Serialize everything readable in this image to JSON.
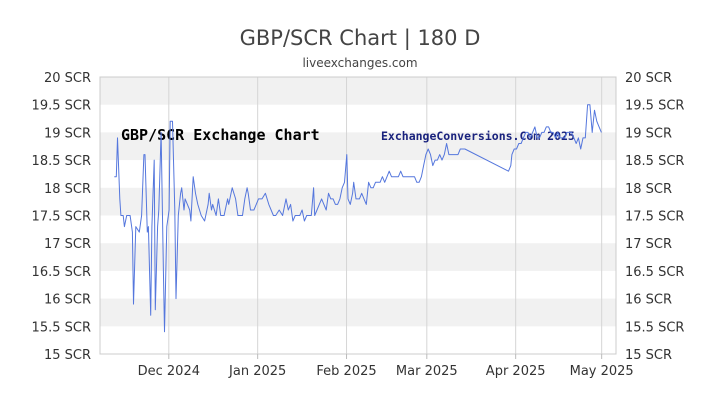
{
  "chart_data": {
    "type": "line",
    "title": "GBP/SCR Chart | 180 D",
    "subtitle": "liveexchanges.com",
    "watermark_left": "GBP/SCR Exchange Chart",
    "watermark_right": "ExchangeConversions.Com 2025",
    "ylim": [
      15,
      20
    ],
    "y_ticks": [
      {
        "value": 20,
        "label": "20 SCR"
      },
      {
        "value": 19.5,
        "label": "19.5 SCR"
      },
      {
        "value": 19,
        "label": "19 SCR"
      },
      {
        "value": 18.5,
        "label": "18.5 SCR"
      },
      {
        "value": 18,
        "label": "18 SCR"
      },
      {
        "value": 17.5,
        "label": "17.5 SCR"
      },
      {
        "value": 17,
        "label": "17 SCR"
      },
      {
        "value": 16.5,
        "label": "16.5 SCR"
      },
      {
        "value": 16,
        "label": "16 SCR"
      },
      {
        "value": 15.5,
        "label": "15.5 SCR"
      },
      {
        "value": 15,
        "label": "15 SCR"
      }
    ],
    "x_domain": [
      0,
      180
    ],
    "x_ticks": [
      {
        "value": 24,
        "label": "Dec 2024"
      },
      {
        "value": 55,
        "label": "Jan 2025"
      },
      {
        "value": 86,
        "label": "Feb 2025"
      },
      {
        "value": 114,
        "label": "Mar 2025"
      },
      {
        "value": 145,
        "label": "Apr 2025"
      },
      {
        "value": 175,
        "label": "May 2025"
      }
    ],
    "grid": true,
    "line_color": "#5577dd",
    "series": [
      {
        "values": [
          [
            5,
            18.2
          ],
          [
            5.7,
            18.2
          ],
          [
            6.1,
            18.9
          ],
          [
            6.9,
            17.8
          ],
          [
            7.3,
            17.5
          ],
          [
            8.1,
            17.5
          ],
          [
            8.5,
            17.3
          ],
          [
            9.3,
            17.5
          ],
          [
            10.5,
            17.5
          ],
          [
            11.3,
            17.2
          ],
          [
            11.7,
            15.9
          ],
          [
            12.5,
            17.3
          ],
          [
            13.7,
            17.2
          ],
          [
            14.5,
            17.5
          ],
          [
            15.3,
            18.6
          ],
          [
            15.7,
            18.6
          ],
          [
            16.5,
            17.2
          ],
          [
            16.9,
            17.3
          ],
          [
            17.7,
            15.7
          ],
          [
            18.1,
            17.3
          ],
          [
            18.9,
            18.5
          ],
          [
            19.3,
            15.8
          ],
          [
            20.1,
            17.3
          ],
          [
            20.5,
            17.6
          ],
          [
            21.3,
            19.0
          ],
          [
            22.1,
            16.5
          ],
          [
            22.5,
            15.4
          ],
          [
            23.3,
            17.3
          ],
          [
            24.1,
            17.6
          ],
          [
            24.5,
            19.2
          ],
          [
            25.3,
            19.2
          ],
          [
            26.1,
            17.6
          ],
          [
            26.5,
            16.0
          ],
          [
            27.3,
            17.5
          ],
          [
            28.1,
            17.9
          ],
          [
            28.5,
            18.0
          ],
          [
            29.3,
            17.6
          ],
          [
            29.7,
            17.8
          ],
          [
            30.5,
            17.7
          ],
          [
            31.3,
            17.6
          ],
          [
            31.7,
            17.4
          ],
          [
            32.5,
            18.2
          ],
          [
            33.3,
            17.9
          ],
          [
            34.1,
            17.7
          ],
          [
            35.3,
            17.5
          ],
          [
            36.5,
            17.4
          ],
          [
            37.7,
            17.7
          ],
          [
            38.1,
            17.9
          ],
          [
            38.9,
            17.6
          ],
          [
            39.3,
            17.7
          ],
          [
            40.5,
            17.5
          ],
          [
            41.3,
            17.8
          ],
          [
            42.1,
            17.5
          ],
          [
            43.3,
            17.5
          ],
          [
            44.5,
            17.8
          ],
          [
            44.9,
            17.7
          ],
          [
            46.1,
            18.0
          ],
          [
            47.3,
            17.8
          ],
          [
            48.1,
            17.5
          ],
          [
            48.9,
            17.5
          ],
          [
            49.7,
            17.5
          ],
          [
            50.5,
            17.8
          ],
          [
            51.3,
            18.0
          ],
          [
            51.7,
            17.9
          ],
          [
            52.5,
            17.6
          ],
          [
            53.7,
            17.6
          ],
          [
            55.3,
            17.8
          ],
          [
            56.5,
            17.8
          ],
          [
            57.7,
            17.9
          ],
          [
            58.9,
            17.7
          ],
          [
            60.5,
            17.5
          ],
          [
            61.3,
            17.5
          ],
          [
            62.5,
            17.6
          ],
          [
            63.7,
            17.5
          ],
          [
            64.9,
            17.8
          ],
          [
            65.7,
            17.6
          ],
          [
            66.5,
            17.7
          ],
          [
            67.3,
            17.4
          ],
          [
            68.1,
            17.5
          ],
          [
            68.9,
            17.5
          ],
          [
            69.7,
            17.5
          ],
          [
            70.5,
            17.6
          ],
          [
            71.3,
            17.4
          ],
          [
            72.1,
            17.5
          ],
          [
            72.9,
            17.5
          ],
          [
            73.7,
            17.5
          ],
          [
            74.5,
            18.0
          ],
          [
            74.9,
            17.5
          ],
          [
            75.7,
            17.6
          ],
          [
            76.5,
            17.7
          ],
          [
            77.3,
            17.8
          ],
          [
            78.1,
            17.7
          ],
          [
            78.9,
            17.6
          ],
          [
            79.7,
            17.9
          ],
          [
            80.5,
            17.8
          ],
          [
            81.3,
            17.8
          ],
          [
            82.1,
            17.7
          ],
          [
            82.9,
            17.7
          ],
          [
            83.7,
            17.8
          ],
          [
            84.5,
            18.0
          ],
          [
            85.3,
            18.1
          ],
          [
            86.1,
            18.6
          ],
          [
            86.5,
            17.8
          ],
          [
            87.3,
            17.7
          ],
          [
            88.1,
            17.9
          ],
          [
            88.5,
            18.1
          ],
          [
            89.3,
            17.8
          ],
          [
            89.7,
            17.8
          ],
          [
            90.5,
            17.8
          ],
          [
            91.3,
            17.9
          ],
          [
            92.1,
            17.8
          ],
          [
            92.9,
            17.7
          ],
          [
            93.7,
            18.1
          ],
          [
            94.5,
            18.0
          ],
          [
            95.3,
            18.0
          ],
          [
            96.1,
            18.1
          ],
          [
            96.9,
            18.1
          ],
          [
            97.7,
            18.1
          ],
          [
            98.5,
            18.2
          ],
          [
            99.3,
            18.1
          ],
          [
            100.1,
            18.2
          ],
          [
            100.9,
            18.3
          ],
          [
            101.7,
            18.2
          ],
          [
            102.5,
            18.2
          ],
          [
            103.3,
            18.2
          ],
          [
            104.1,
            18.2
          ],
          [
            104.9,
            18.3
          ],
          [
            105.7,
            18.2
          ],
          [
            106.5,
            18.2
          ],
          [
            107.3,
            18.2
          ],
          [
            108.1,
            18.2
          ],
          [
            108.9,
            18.2
          ],
          [
            109.7,
            18.2
          ],
          [
            110.5,
            18.1
          ],
          [
            111.3,
            18.1
          ],
          [
            112.1,
            18.2
          ],
          [
            112.9,
            18.4
          ],
          [
            113.7,
            18.6
          ],
          [
            114.5,
            18.7
          ],
          [
            115.3,
            18.6
          ],
          [
            116.1,
            18.4
          ],
          [
            116.9,
            18.5
          ],
          [
            117.7,
            18.5
          ],
          [
            118.5,
            18.6
          ],
          [
            119.3,
            18.5
          ],
          [
            120.1,
            18.6
          ],
          [
            120.9,
            18.8
          ],
          [
            121.7,
            18.6
          ],
          [
            122.5,
            18.6
          ],
          [
            123.3,
            18.6
          ],
          [
            124.1,
            18.6
          ],
          [
            124.9,
            18.6
          ],
          [
            125.7,
            18.7
          ],
          [
            126.5,
            18.7
          ],
          [
            127.3,
            18.7
          ],
          [
            142.5,
            18.3
          ],
          [
            143.3,
            18.4
          ],
          [
            143.7,
            18.6
          ],
          [
            144.5,
            18.7
          ],
          [
            145.3,
            18.7
          ],
          [
            146.1,
            18.8
          ],
          [
            146.9,
            18.8
          ],
          [
            147.7,
            18.9
          ],
          [
            148.5,
            19.0
          ],
          [
            149.3,
            19.0
          ],
          [
            150.1,
            18.9
          ],
          [
            150.9,
            19.0
          ],
          [
            151.7,
            19.1
          ],
          [
            152.5,
            18.9
          ],
          [
            153.3,
            18.9
          ],
          [
            154.1,
            19.0
          ],
          [
            154.9,
            19.0
          ],
          [
            155.7,
            19.1
          ],
          [
            156.5,
            19.1
          ],
          [
            157.3,
            19.0
          ],
          [
            158.1,
            19.0
          ],
          [
            158.9,
            18.9
          ],
          [
            159.7,
            19.0
          ],
          [
            160.5,
            18.9
          ],
          [
            161.3,
            18.9
          ],
          [
            162.1,
            18.9
          ],
          [
            162.9,
            19.0
          ],
          [
            163.7,
            19.0
          ],
          [
            164.5,
            19.0
          ],
          [
            165.3,
            18.9
          ],
          [
            166.1,
            18.8
          ],
          [
            166.9,
            18.9
          ],
          [
            167.7,
            18.7
          ],
          [
            168.5,
            18.9
          ],
          [
            169.3,
            18.9
          ],
          [
            170.1,
            19.5
          ],
          [
            170.9,
            19.5
          ],
          [
            171.7,
            19.0
          ],
          [
            172.5,
            19.4
          ],
          [
            173.3,
            19.2
          ],
          [
            174.1,
            19.1
          ],
          [
            174.9,
            19.0
          ]
        ]
      }
    ]
  }
}
